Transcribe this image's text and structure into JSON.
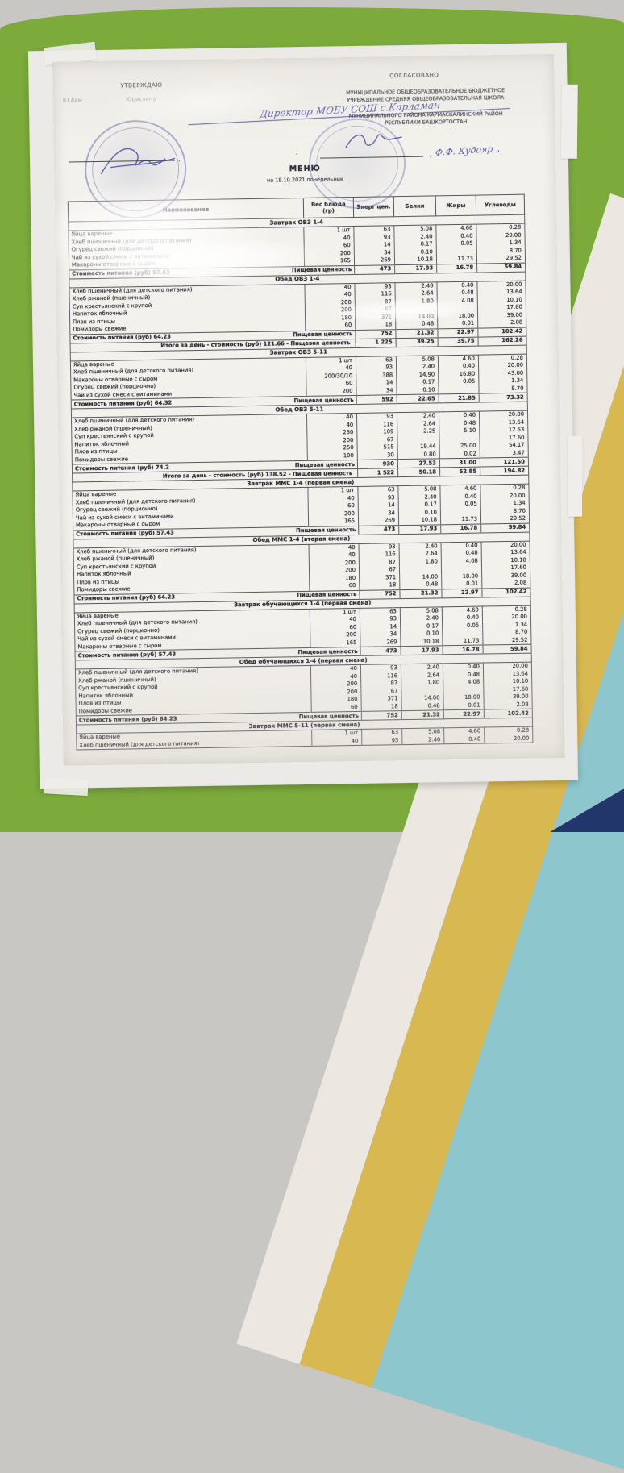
{
  "colors": {
    "wall_green": "#7cab3c",
    "top_band_grey": "#c9c7c4",
    "stripe_white": "#ece8e1",
    "stripe_yellow": "#d8b851",
    "stripe_teal": "#8ec6cd",
    "corner_navy": "#23366b",
    "frame_white": "#eceae6",
    "paper": "#f3f1ec",
    "stamp_blue": "#5c64ac"
  },
  "header": {
    "approve_label": "УТВЕРЖДАЮ",
    "approve_name_a": "Ю.Ахм",
    "approve_name_b": "Юрисовна",
    "agree_label": "СОГЛАСОВАНО",
    "org_lines": [
      "МУНИЦИПАЛЬНОЕ ОБЩЕОБРАЗОВАТЕЛЬНОЕ БЮДЖЕТНОЕ",
      "УЧРЕЖДЕНИЕ СРЕДНЯЯ ОБЩЕОБРАЗОВАТЕЛЬНАЯ ШКОЛА",
      "МУНИЦИПАЛЬНОГО РАЙОНА КАРМАСКАЛИНСКИЙ РАЙОН",
      "РЕСПУБЛИКИ БАШКОРТОСТАН"
    ],
    "handwriting_center": "Директор МОБУ СОШ с.Карламан",
    "handwriting_right": ", Ф.Ф. Кудояр „",
    "sig_comma_left": ",",
    "sig_comma_mid": ",",
    "title": "МЕНЮ",
    "date_line": "на 18.10.2021 понедельник"
  },
  "table": {
    "columns": [
      "Наименование",
      "Вес блюда (гр)",
      "Энерг цен.",
      "Белки",
      "Жиры",
      "Углеводы"
    ],
    "nutrition_label": "Пищевая ценность",
    "sections": [
      {
        "title": "Завтрак ОВЗ 1-4",
        "rows": [
          [
            "Яйца вареные",
            "1 шт",
            "63",
            "5.08",
            "4.60",
            "0.28"
          ],
          [
            "Хлеб пшеничный (для детского питания)",
            "40",
            "93",
            "2.40",
            "0.40",
            "20.00"
          ],
          [
            "Огурец свежий (порционно)",
            "60",
            "14",
            "0.17",
            "0.05",
            "1.34"
          ],
          [
            "Чай из сухой смеси с витаминами",
            "200",
            "34",
            "0.10",
            "",
            "8.70"
          ],
          [
            "Макароны отварные с сыром",
            "165",
            "269",
            "10.18",
            "11.73",
            "29.52"
          ]
        ],
        "footer_label": "Стоимость питания (руб)  57.43",
        "footer_values": [
          "473",
          "17.93",
          "16.78",
          "59.84"
        ]
      },
      {
        "title": "Обед ОВЗ 1-4",
        "rows": [
          [
            "Хлеб пшеничный (для детского питания)",
            "40",
            "93",
            "2.40",
            "0.40",
            "20.00"
          ],
          [
            "Хлеб ржаной (пшеничный)",
            "40",
            "116",
            "2.64",
            "0.48",
            "13.64"
          ],
          [
            "Суп крестьянский с крупой",
            "200",
            "87",
            "1.80",
            "4.08",
            "10.10"
          ],
          [
            "Напиток яблочный",
            "200",
            "67",
            "",
            "",
            "17.60"
          ],
          [
            "Плов из птицы",
            "180",
            "371",
            "14.00",
            "18.00",
            "39.00"
          ],
          [
            "Помидоры свежие",
            "60",
            "18",
            "0.48",
            "0.01",
            "2.08"
          ]
        ],
        "footer_label": "Стоимость питания (руб)  64.23",
        "footer_values": [
          "752",
          "21.32",
          "22.97",
          "102.42"
        ],
        "total_label": "Итого за день - стоимость (руб) 121.66  - Пищевая ценность",
        "total_values": [
          "1 225",
          "39.25",
          "39.75",
          "162.26"
        ]
      },
      {
        "title": "Завтрак ОВЗ 5-11",
        "rows": [
          [
            "Яйца вареные",
            "1 шт",
            "63",
            "5.08",
            "4.60",
            "0.28"
          ],
          [
            "Хлеб пшеничный (для детского питания)",
            "40",
            "93",
            "2.40",
            "0.40",
            "20.00"
          ],
          [
            "Макароны отварные с сыром",
            "200/30/10",
            "388",
            "14.90",
            "16.80",
            "43.00"
          ],
          [
            "Огурец свежий (порционно)",
            "60",
            "14",
            "0.17",
            "0.05",
            "1.34"
          ],
          [
            "Чай из сухой смеси с витаминами",
            "200",
            "34",
            "0.10",
            "",
            "8.70"
          ]
        ],
        "footer_label": "Стоимость питания (руб)  64.32",
        "footer_values": [
          "592",
          "22.65",
          "21.85",
          "73.32"
        ]
      },
      {
        "title": "Обед ОВЗ 5-11",
        "rows": [
          [
            "Хлеб пшеничный (для детского питания)",
            "40",
            "93",
            "2.40",
            "0.40",
            "20.00"
          ],
          [
            "Хлеб ржаной (пшеничный)",
            "40",
            "116",
            "2.64",
            "0.48",
            "13.64"
          ],
          [
            "Суп крестьянский с крупой",
            "250",
            "109",
            "2.25",
            "5.10",
            "12.63"
          ],
          [
            "Напиток яблочный",
            "200",
            "67",
            "",
            "",
            "17.60"
          ],
          [
            "Плов из птицы",
            "250",
            "515",
            "19.44",
            "25.00",
            "54.17"
          ],
          [
            "Помидоры свежие",
            "100",
            "30",
            "0.80",
            "0.02",
            "3.47"
          ]
        ],
        "footer_label": "Стоимость питания (руб)  74.2",
        "footer_values": [
          "930",
          "27.53",
          "31.00",
          "121.50"
        ],
        "total_label": "Итого за день - стоимость (руб) 138.52  - Пищевая ценность",
        "total_values": [
          "1 522",
          "50.18",
          "52.85",
          "194.82"
        ]
      },
      {
        "title": "Завтрак ММС 1-4 (первая смена)",
        "rows": [
          [
            "Яйца вареные",
            "1 шт",
            "63",
            "5.08",
            "4.60",
            "0.28"
          ],
          [
            "Хлеб пшеничный (для детского питания)",
            "40",
            "93",
            "2.40",
            "0.40",
            "20.00"
          ],
          [
            "Огурец свежий (порционно)",
            "60",
            "14",
            "0.17",
            "0.05",
            "1.34"
          ],
          [
            "Чай из сухой смеси с витаминами",
            "200",
            "34",
            "0.10",
            "",
            "8.70"
          ],
          [
            "Макароны отварные с сыром",
            "165",
            "269",
            "10.18",
            "11.73",
            "29.52"
          ]
        ],
        "footer_label": "Стоимость питания (руб)  57.43",
        "footer_values": [
          "473",
          "17.93",
          "16.78",
          "59.84"
        ]
      },
      {
        "title": "Обед ММС 1-4 (вторая смена)",
        "rows": [
          [
            "Хлеб пшеничный (для детского питания)",
            "40",
            "93",
            "2.40",
            "0.40",
            "20.00"
          ],
          [
            "Хлеб ржаной (пшеничный)",
            "40",
            "116",
            "2.64",
            "0.48",
            "13.64"
          ],
          [
            "Суп крестьянский с крупой",
            "200",
            "87",
            "1.80",
            "4.08",
            "10.10"
          ],
          [
            "Напиток яблочный",
            "200",
            "67",
            "",
            "",
            "17.60"
          ],
          [
            "Плов из птицы",
            "180",
            "371",
            "14.00",
            "18.00",
            "39.00"
          ],
          [
            "Помидоры свежие",
            "60",
            "18",
            "0.48",
            "0.01",
            "2.08"
          ]
        ],
        "footer_label": "Стоимость питания (руб)  64.23",
        "footer_values": [
          "752",
          "21.32",
          "22.97",
          "102.42"
        ]
      },
      {
        "title": "Завтрак обучающихся 1-4 (первая смена)",
        "rows": [
          [
            "Яйца вареные",
            "1 шт",
            "63",
            "5.08",
            "4.60",
            "0.28"
          ],
          [
            "Хлеб пшеничный (для детского питания)",
            "40",
            "93",
            "2.40",
            "0.40",
            "20.00"
          ],
          [
            "Огурец свежий (порционно)",
            "60",
            "14",
            "0.17",
            "0.05",
            "1.34"
          ],
          [
            "Чай из сухой смеси с витаминами",
            "200",
            "34",
            "0.10",
            "",
            "8.70"
          ],
          [
            "Макароны отварные с сыром",
            "165",
            "269",
            "10.18",
            "11.73",
            "29.52"
          ]
        ],
        "footer_label": "Стоимость питания (руб)  57.43",
        "footer_values": [
          "473",
          "17.93",
          "16.78",
          "59.84"
        ]
      },
      {
        "title": "Обед обучающихся 1-4 (первая смена)",
        "rows": [
          [
            "Хлеб пшеничный (для детского питания)",
            "40",
            "93",
            "2.40",
            "0.40",
            "20.00"
          ],
          [
            "Хлеб ржаной (пшеничный)",
            "40",
            "116",
            "2.64",
            "0.48",
            "13.64"
          ],
          [
            "Суп крестьянский с крупой",
            "200",
            "87",
            "1.80",
            "4.08",
            "10.10"
          ],
          [
            "Напиток яблочный",
            "200",
            "67",
            "",
            "",
            "17.60"
          ],
          [
            "Плов из птицы",
            "180",
            "371",
            "14.00",
            "18.00",
            "39.00"
          ],
          [
            "Помидоры свежие",
            "60",
            "18",
            "0.48",
            "0.01",
            "2.08"
          ]
        ],
        "footer_label": "Стоимость питания (руб)  64.23",
        "footer_values": [
          "752",
          "21.32",
          "22.97",
          "102.42"
        ]
      },
      {
        "title": "Завтрак ММС 5-11 (первая смена)",
        "rows": [
          [
            "Яйца вареные",
            "1 шт",
            "63",
            "5.08",
            "4.60",
            "0.28"
          ],
          [
            "Хлеб пшеничный (для детского питания)",
            "40",
            "93",
            "2.40",
            "0.40",
            "20.00"
          ]
        ]
      }
    ]
  }
}
